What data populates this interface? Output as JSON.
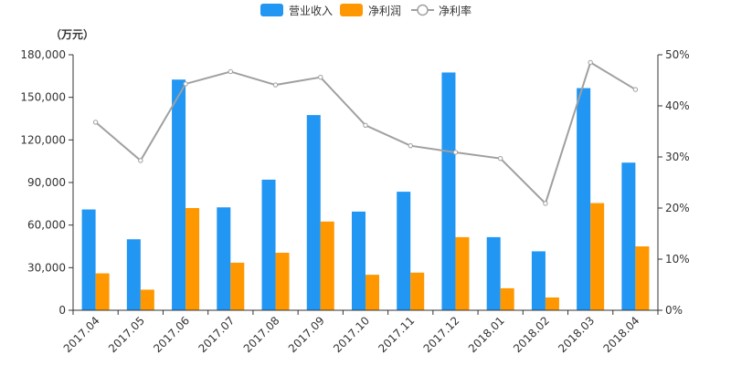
{
  "chart_data": {
    "type": "bar",
    "categories": [
      "2017.04",
      "2017.05",
      "2017.06",
      "2017.07",
      "2017.08",
      "2017.09",
      "2017.10",
      "2017.11",
      "2017.12",
      "2018.01",
      "2018.02",
      "2018.03",
      "2018.04"
    ],
    "series": [
      {
        "name": "营业收入",
        "type": "bar",
        "axis": "left",
        "color": "#2196F3",
        "values": [
          71000,
          50000,
          162500,
          72500,
          92000,
          137500,
          69500,
          83500,
          167500,
          51500,
          41500,
          156500,
          104000
        ]
      },
      {
        "name": "净利润",
        "type": "bar",
        "axis": "left",
        "color": "#FF9800",
        "values": [
          26000,
          14500,
          72000,
          33500,
          40500,
          62500,
          25000,
          26500,
          51500,
          15500,
          9000,
          75500,
          45000
        ]
      },
      {
        "name": "净利率",
        "type": "line",
        "axis": "right",
        "color": "#A0A0A0",
        "values": [
          0.368,
          0.293,
          0.443,
          0.467,
          0.441,
          0.456,
          0.362,
          0.322,
          0.309,
          0.297,
          0.209,
          0.485,
          0.432
        ]
      }
    ],
    "y_left": {
      "unit_label": "（万元）",
      "min": 0,
      "max": 180000,
      "ticks": [
        0,
        30000,
        60000,
        90000,
        120000,
        150000,
        180000
      ],
      "tick_labels": [
        "0",
        "30,000",
        "60,000",
        "90,000",
        "120,000",
        "150,000",
        "180,000"
      ]
    },
    "y_right": {
      "min": 0,
      "max": 0.5,
      "ticks": [
        0,
        0.1,
        0.2,
        0.3,
        0.4,
        0.5
      ],
      "tick_labels": [
        "0%",
        "10%",
        "20%",
        "30%",
        "40%",
        "50%"
      ]
    },
    "legend_position": "top-center",
    "grid": false,
    "x_label_rotation": -45
  }
}
